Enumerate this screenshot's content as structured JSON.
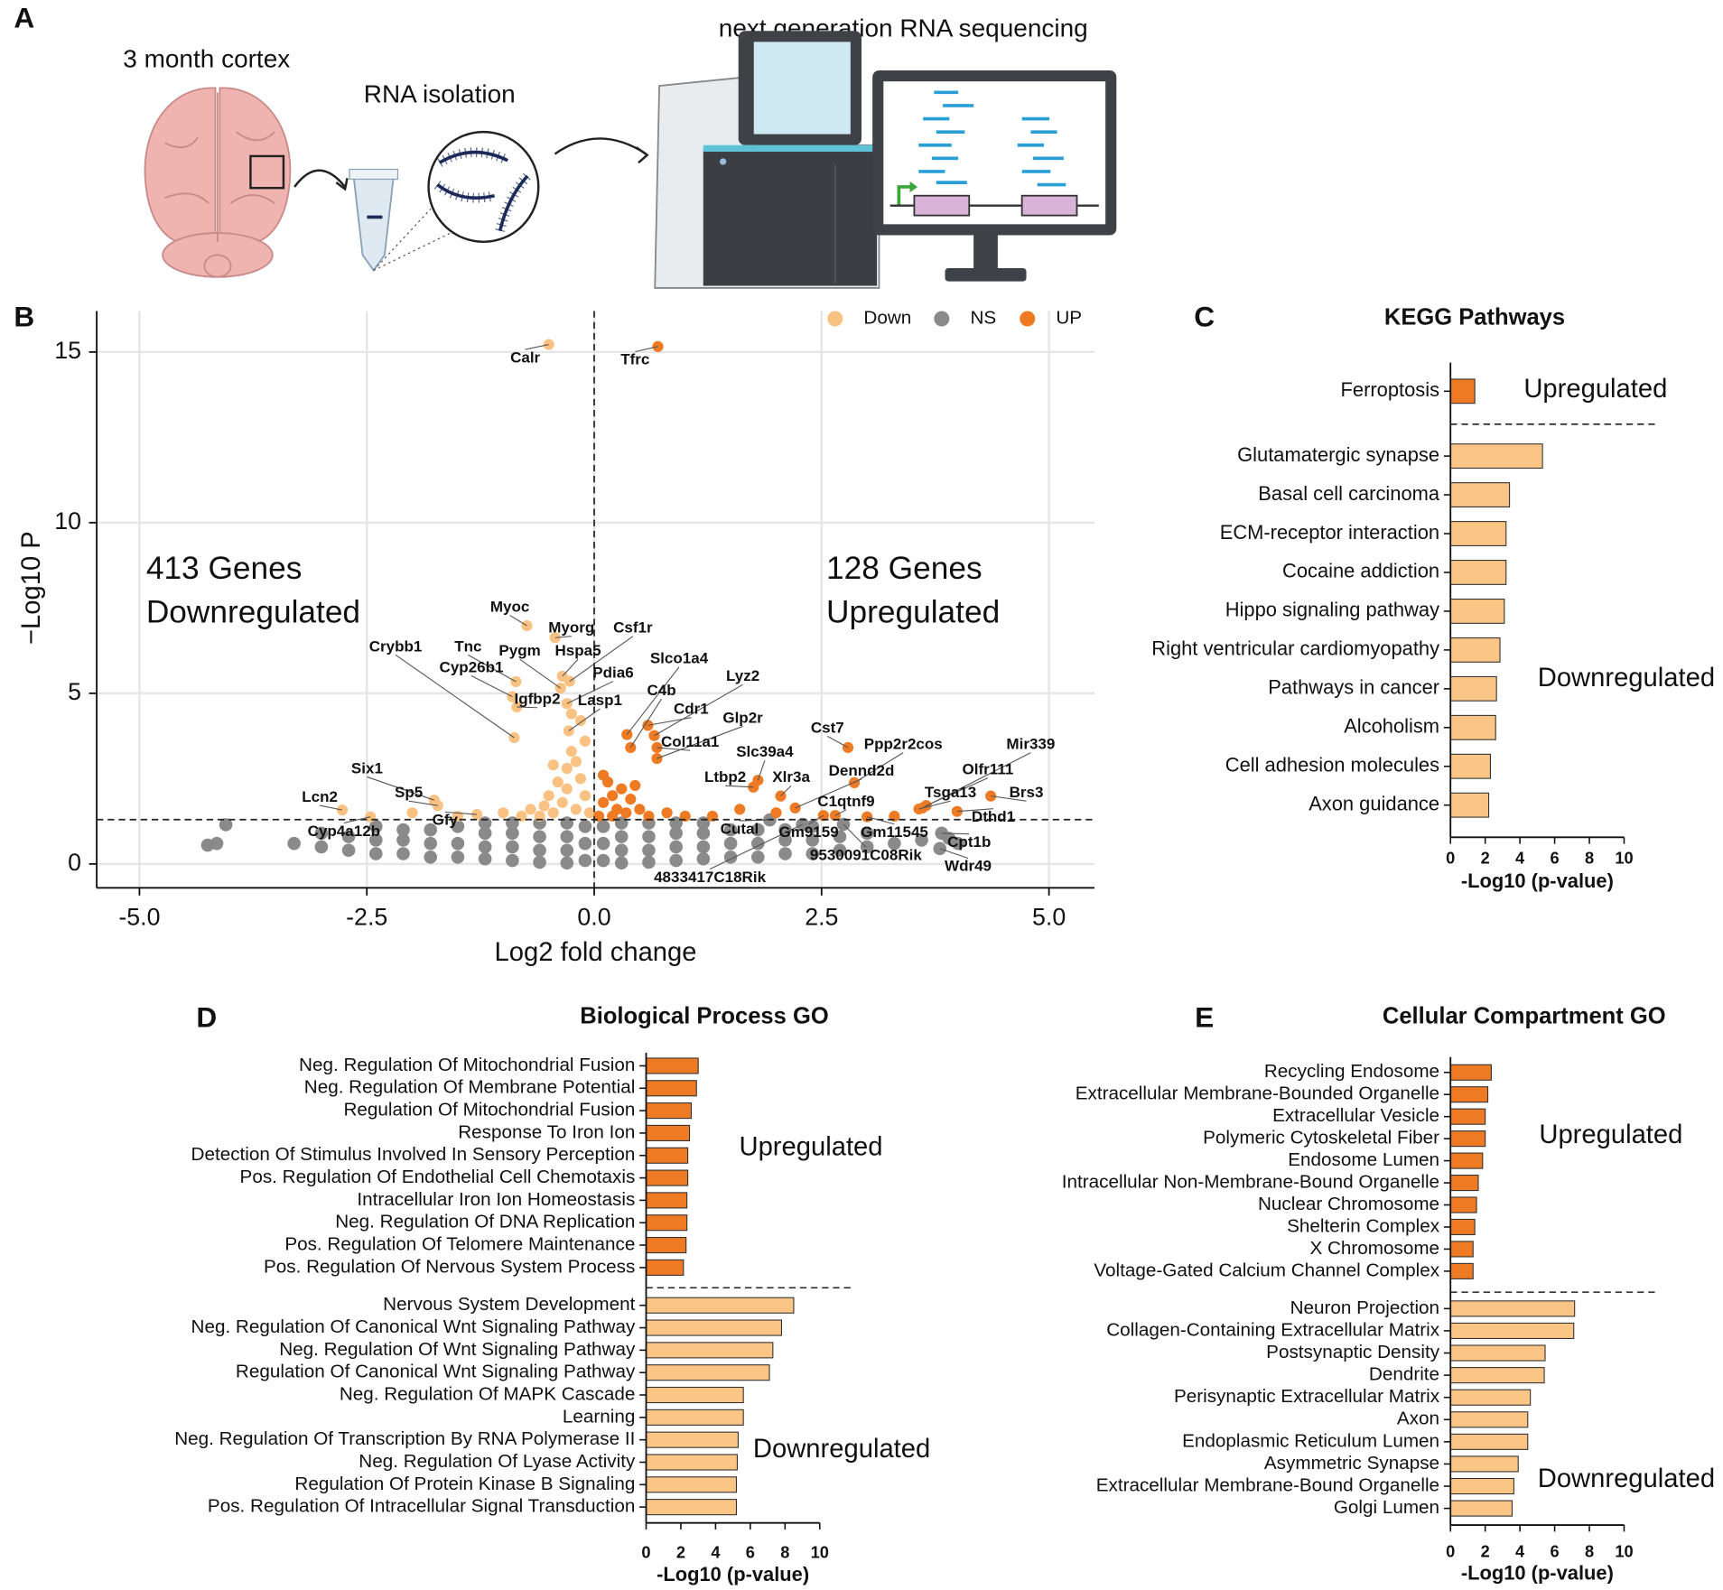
{
  "panel_labels": [
    "A",
    "B",
    "C",
    "D",
    "E"
  ],
  "schematic": {
    "labels": [
      "3 month cortex",
      "RNA isolation",
      "next generation RNA sequencing"
    ]
  },
  "chart_data": [
    {
      "type": "volcano",
      "xlabel": "Log2 fold change",
      "ylabel": "−Log10 P",
      "xlim": [
        -5.47,
        5.5
      ],
      "ylim": [
        -0.7,
        16.2
      ],
      "xticks": [
        {
          "value": -5,
          "label": "-5.0"
        },
        -2.5,
        {
          "value": 0,
          "label": "0.0"
        },
        2.5,
        {
          "value": 5,
          "label": "5.0"
        }
      ],
      "yticks": [
        0,
        5,
        10,
        15
      ],
      "grid": true,
      "vlines": [
        0
      ],
      "hlines": [
        1.3
      ],
      "annotations": [
        "413 Genes",
        "Downregulated",
        "128 Genes",
        "Upregulated"
      ],
      "series": [
        {
          "name": "Down",
          "color": "#f9c283",
          "labels": [
            "Calr",
            "Myoc",
            "Myorg",
            "Csf1r",
            "Hspa5",
            "Pygm",
            "Tnc",
            "Crybb1",
            "Cyp26b1",
            "Igfbp2",
            "Pdia6",
            "Lasp1",
            "Six1",
            "Sp5",
            "Lcn2",
            "Gfy",
            "Cyp4a12b",
            null,
            null,
            null,
            null,
            null,
            null,
            null,
            null,
            null,
            null,
            null,
            null,
            null,
            null,
            null,
            null,
            null,
            null,
            null,
            null,
            null,
            null,
            null
          ],
          "x": [
            -0.5,
            -0.74,
            -0.43,
            -0.27,
            -0.35,
            -0.37,
            -0.86,
            -0.88,
            -0.9,
            -0.85,
            -0.3,
            -0.28,
            -1.76,
            -1.72,
            -2.77,
            -1.29,
            -2.46,
            -0.05,
            -0.1,
            -0.15,
            -0.2,
            -0.25,
            -0.1,
            -0.2,
            -0.3,
            -0.35,
            -0.4,
            -0.45,
            -0.5,
            -0.55,
            -0.6,
            -0.7,
            -0.8,
            -0.15,
            -0.3,
            -0.45,
            -1.0,
            -1.5,
            -2.0,
            -0.25
          ],
          "values": [
            15.22,
            6.98,
            6.63,
            5.35,
            5.5,
            5.15,
            5.34,
            3.7,
            4.9,
            4.6,
            4.7,
            3.9,
            1.87,
            1.71,
            1.58,
            1.45,
            1.38,
            1.5,
            2.0,
            2.5,
            3.0,
            3.3,
            3.6,
            1.6,
            2.2,
            1.8,
            2.4,
            1.5,
            2.0,
            1.7,
            1.4,
            1.6,
            1.4,
            4.2,
            2.8,
            2.9,
            1.5,
            1.4,
            1.5,
            4.4
          ]
        },
        {
          "name": "NS",
          "color": "#8a8a8a",
          "labels": [
            "Cutal",
            "Cpt1b",
            "9530091C08Rik",
            "Wdr49",
            "4833417C18Rik",
            null,
            null,
            null,
            null,
            null,
            null,
            null,
            null,
            null,
            null,
            null,
            null,
            null,
            null,
            null,
            null,
            null,
            null,
            null,
            null,
            null,
            null,
            null,
            null,
            null,
            null,
            null,
            null,
            null,
            null,
            null,
            null,
            null,
            null,
            null,
            null,
            null,
            null,
            null,
            null,
            null,
            null,
            null,
            null,
            null,
            null,
            null,
            null,
            null,
            null,
            null,
            null,
            null,
            null,
            null,
            null,
            null,
            null,
            null,
            null,
            null,
            null,
            null,
            null,
            null,
            null,
            null,
            null,
            null,
            null,
            null,
            null,
            null,
            null,
            null,
            null,
            null,
            null
          ],
          "x": [
            1.93,
            3.82,
            2.74,
            3.8,
            2.29,
            -4.25,
            -4.15,
            -4.05,
            -3.3,
            -3.0,
            -3.0,
            -2.7,
            -2.7,
            -2.4,
            -2.4,
            -2.4,
            -2.1,
            -2.1,
            -2.1,
            -1.8,
            -1.8,
            -1.8,
            -1.5,
            -1.5,
            -1.5,
            -1.2,
            -1.2,
            -1.2,
            -1.2,
            -0.9,
            -0.9,
            -0.9,
            -0.9,
            -0.6,
            -0.6,
            -0.6,
            -0.6,
            -0.3,
            -0.3,
            -0.3,
            -0.3,
            -0.1,
            -0.1,
            -0.1,
            0.1,
            0.1,
            0.1,
            0.3,
            0.3,
            0.3,
            0.3,
            0.6,
            0.6,
            0.6,
            0.6,
            0.9,
            0.9,
            0.9,
            0.9,
            1.2,
            1.2,
            1.2,
            1.2,
            1.5,
            1.5,
            1.5,
            1.8,
            1.8,
            1.8,
            2.1,
            2.1,
            2.1,
            2.4,
            2.4,
            2.4,
            2.7,
            2.7,
            3.0,
            3.0,
            3.3,
            3.6,
            3.9,
            4.0
          ],
          "values": [
            1.29,
            0.9,
            1.16,
            0.45,
            1.16,
            0.55,
            0.6,
            1.15,
            0.6,
            0.5,
            0.9,
            0.4,
            0.8,
            0.3,
            0.7,
            1.1,
            0.3,
            0.7,
            1.0,
            0.2,
            0.6,
            1.0,
            0.2,
            0.6,
            1.1,
            0.15,
            0.5,
            0.9,
            1.2,
            0.1,
            0.5,
            0.9,
            1.2,
            0.05,
            0.4,
            0.8,
            1.2,
            0.03,
            0.4,
            0.8,
            1.2,
            0.1,
            0.6,
            1.1,
            0.1,
            0.6,
            1.1,
            0.03,
            0.4,
            0.8,
            1.2,
            0.05,
            0.4,
            0.8,
            1.2,
            0.1,
            0.5,
            0.9,
            1.2,
            0.15,
            0.5,
            0.9,
            1.2,
            0.2,
            0.6,
            1.0,
            0.2,
            0.6,
            1.0,
            0.3,
            0.7,
            1.0,
            0.3,
            0.7,
            1.1,
            0.4,
            0.8,
            0.5,
            0.9,
            0.6,
            0.7,
            0.75,
            0.6
          ]
        },
        {
          "name": "UP",
          "color": "#ee7b24",
          "labels": [
            "Tfrc",
            "Slco1a4",
            "Lyz2",
            "C4b",
            "Cdr1",
            "Glp2r",
            "Col11a1",
            "Cst7",
            "Slc39a4",
            "Ppp2r2cos",
            "Mir339",
            "Ltbp2",
            "Xlr3a",
            "Dennd2d",
            "Olfr111",
            "C1qtnf9",
            "Tsga13",
            "Brs3",
            "Dthd1",
            "Gm9159",
            "Gm11545",
            null,
            null,
            null,
            null,
            null,
            null,
            null,
            null,
            null,
            null,
            null,
            null,
            null,
            null,
            null,
            null,
            null,
            null,
            null
          ],
          "x": [
            0.7,
            0.36,
            0.66,
            0.4,
            0.59,
            0.69,
            0.69,
            2.79,
            1.8,
            2.86,
            3.61,
            1.75,
            2.05,
            2.21,
            3.65,
            2.65,
            3.57,
            4.36,
            3.99,
            2.52,
            3.0,
            0.05,
            0.1,
            0.15,
            0.2,
            0.25,
            0.3,
            0.35,
            0.4,
            0.1,
            0.5,
            0.6,
            0.8,
            1.0,
            1.3,
            1.6,
            2.0,
            3.3,
            0.2,
            0.45
          ],
          "values": [
            15.16,
            3.79,
            3.76,
            3.41,
            4.06,
            3.09,
            3.41,
            3.41,
            2.45,
            2.38,
            1.64,
            2.25,
            1.99,
            1.64,
            1.71,
            1.42,
            1.61,
            1.99,
            1.54,
            1.42,
            1.38,
            1.4,
            1.8,
            2.4,
            2.0,
            1.6,
            2.2,
            1.5,
            1.9,
            2.6,
            1.6,
            1.4,
            1.5,
            1.4,
            1.4,
            1.6,
            1.5,
            1.4,
            1.4,
            2.3
          ]
        }
      ]
    },
    {
      "type": "barh",
      "title": "KEGG Pathways",
      "xlabel": "-Log10 (p-value)",
      "xlim": [
        0,
        10
      ],
      "xticks": [
        0,
        2,
        4,
        6,
        8,
        10
      ],
      "series": [
        {
          "name": "Upregulated",
          "color": "#ee7b24",
          "categories": [
            "Ferroptosis"
          ],
          "values": [
            1.4
          ]
        },
        {
          "name": "Downregulated",
          "color": "#fbc586",
          "categories": [
            "Glutamatergic synapse",
            "Basal cell carcinoma",
            "ECM-receptor interaction",
            "Cocaine addiction",
            "Hippo signaling pathway",
            "Right ventricular cardiomyopathy",
            "Pathways in cancer",
            "Alcoholism",
            "Cell adhesion molecules",
            "Axon guidance"
          ],
          "values": [
            5.3,
            3.4,
            3.2,
            3.2,
            3.1,
            2.85,
            2.65,
            2.6,
            2.3,
            2.2
          ]
        }
      ]
    },
    {
      "type": "barh",
      "title": "Biological Process GO",
      "xlabel": "-Log10 (p-value)",
      "xlim": [
        0,
        10
      ],
      "xticks": [
        0,
        2,
        4,
        6,
        8,
        10
      ],
      "series": [
        {
          "name": "Upregulated",
          "color": "#ee7b24",
          "categories": [
            "Neg. Regulation Of Mitochondrial Fusion",
            "Neg. Regulation Of Membrane Potential",
            "Regulation Of Mitochondrial Fusion",
            "Response To Iron Ion",
            "Detection Of Stimulus Involved In Sensory Perception",
            "Pos. Regulation Of Endothelial Cell Chemotaxis",
            "Intracellular Iron Ion Homeostasis",
            "Neg. Regulation Of DNA Replication",
            "Pos. Regulation Of Telomere Maintenance",
            "Pos. Regulation Of Nervous System Process"
          ],
          "values": [
            3.0,
            2.9,
            2.6,
            2.5,
            2.4,
            2.4,
            2.35,
            2.35,
            2.3,
            2.15
          ]
        },
        {
          "name": "Downregulated",
          "color": "#fbc586",
          "categories": [
            "Nervous System Development",
            "Neg. Regulation Of Canonical Wnt Signaling Pathway",
            "Neg. Regulation Of Wnt Signaling Pathway",
            "Regulation Of Canonical Wnt Signaling Pathway",
            "Neg. Regulation Of MAPK Cascade",
            "Learning",
            "Neg. Regulation Of Transcription By RNA Polymerase II",
            "Neg. Regulation Of Lyase Activity",
            "Regulation Of Protein Kinase B Signaling",
            "Pos. Regulation Of Intracellular Signal Transduction"
          ],
          "values": [
            8.5,
            7.8,
            7.3,
            7.1,
            5.6,
            5.6,
            5.3,
            5.25,
            5.2,
            5.2
          ]
        }
      ]
    },
    {
      "type": "barh",
      "title": "Cellular Compartment GO",
      "xlabel": "-Log10 (p-value)",
      "xlim": [
        0,
        10
      ],
      "xticks": [
        0,
        2,
        4,
        6,
        8,
        10
      ],
      "series": [
        {
          "name": "Upregulated",
          "color": "#ee7b24",
          "categories": [
            "Recycling Endosome",
            "Extracellular Membrane-Bounded Organelle",
            "Extracellular Vesicle",
            "Polymeric Cytoskeletal Fiber",
            "Endosome Lumen",
            "Intracellular Non-Membrane-Bound Organelle",
            "Nuclear Chromosome",
            "Shelterin Complex",
            "X Chromosome",
            "Voltage-Gated Calcium Channel Complex"
          ],
          "values": [
            2.35,
            2.15,
            2.0,
            2.0,
            1.85,
            1.6,
            1.5,
            1.4,
            1.3,
            1.3
          ]
        },
        {
          "name": "Downregulated",
          "color": "#fbc586",
          "categories": [
            "Neuron Projection",
            "Collagen-Containing Extracellular Matrix",
            "Postsynaptic Density",
            "Dendrite",
            "Perisynaptic Extracellular Matrix",
            "Axon",
            "Endoplasmic Reticulum Lumen",
            "Asymmetric Synapse",
            "Extracellular Membrane-Bound Organelle",
            "Golgi Lumen"
          ],
          "values": [
            7.15,
            7.1,
            5.45,
            5.4,
            4.6,
            4.45,
            4.45,
            3.9,
            3.65,
            3.55
          ]
        }
      ]
    }
  ]
}
